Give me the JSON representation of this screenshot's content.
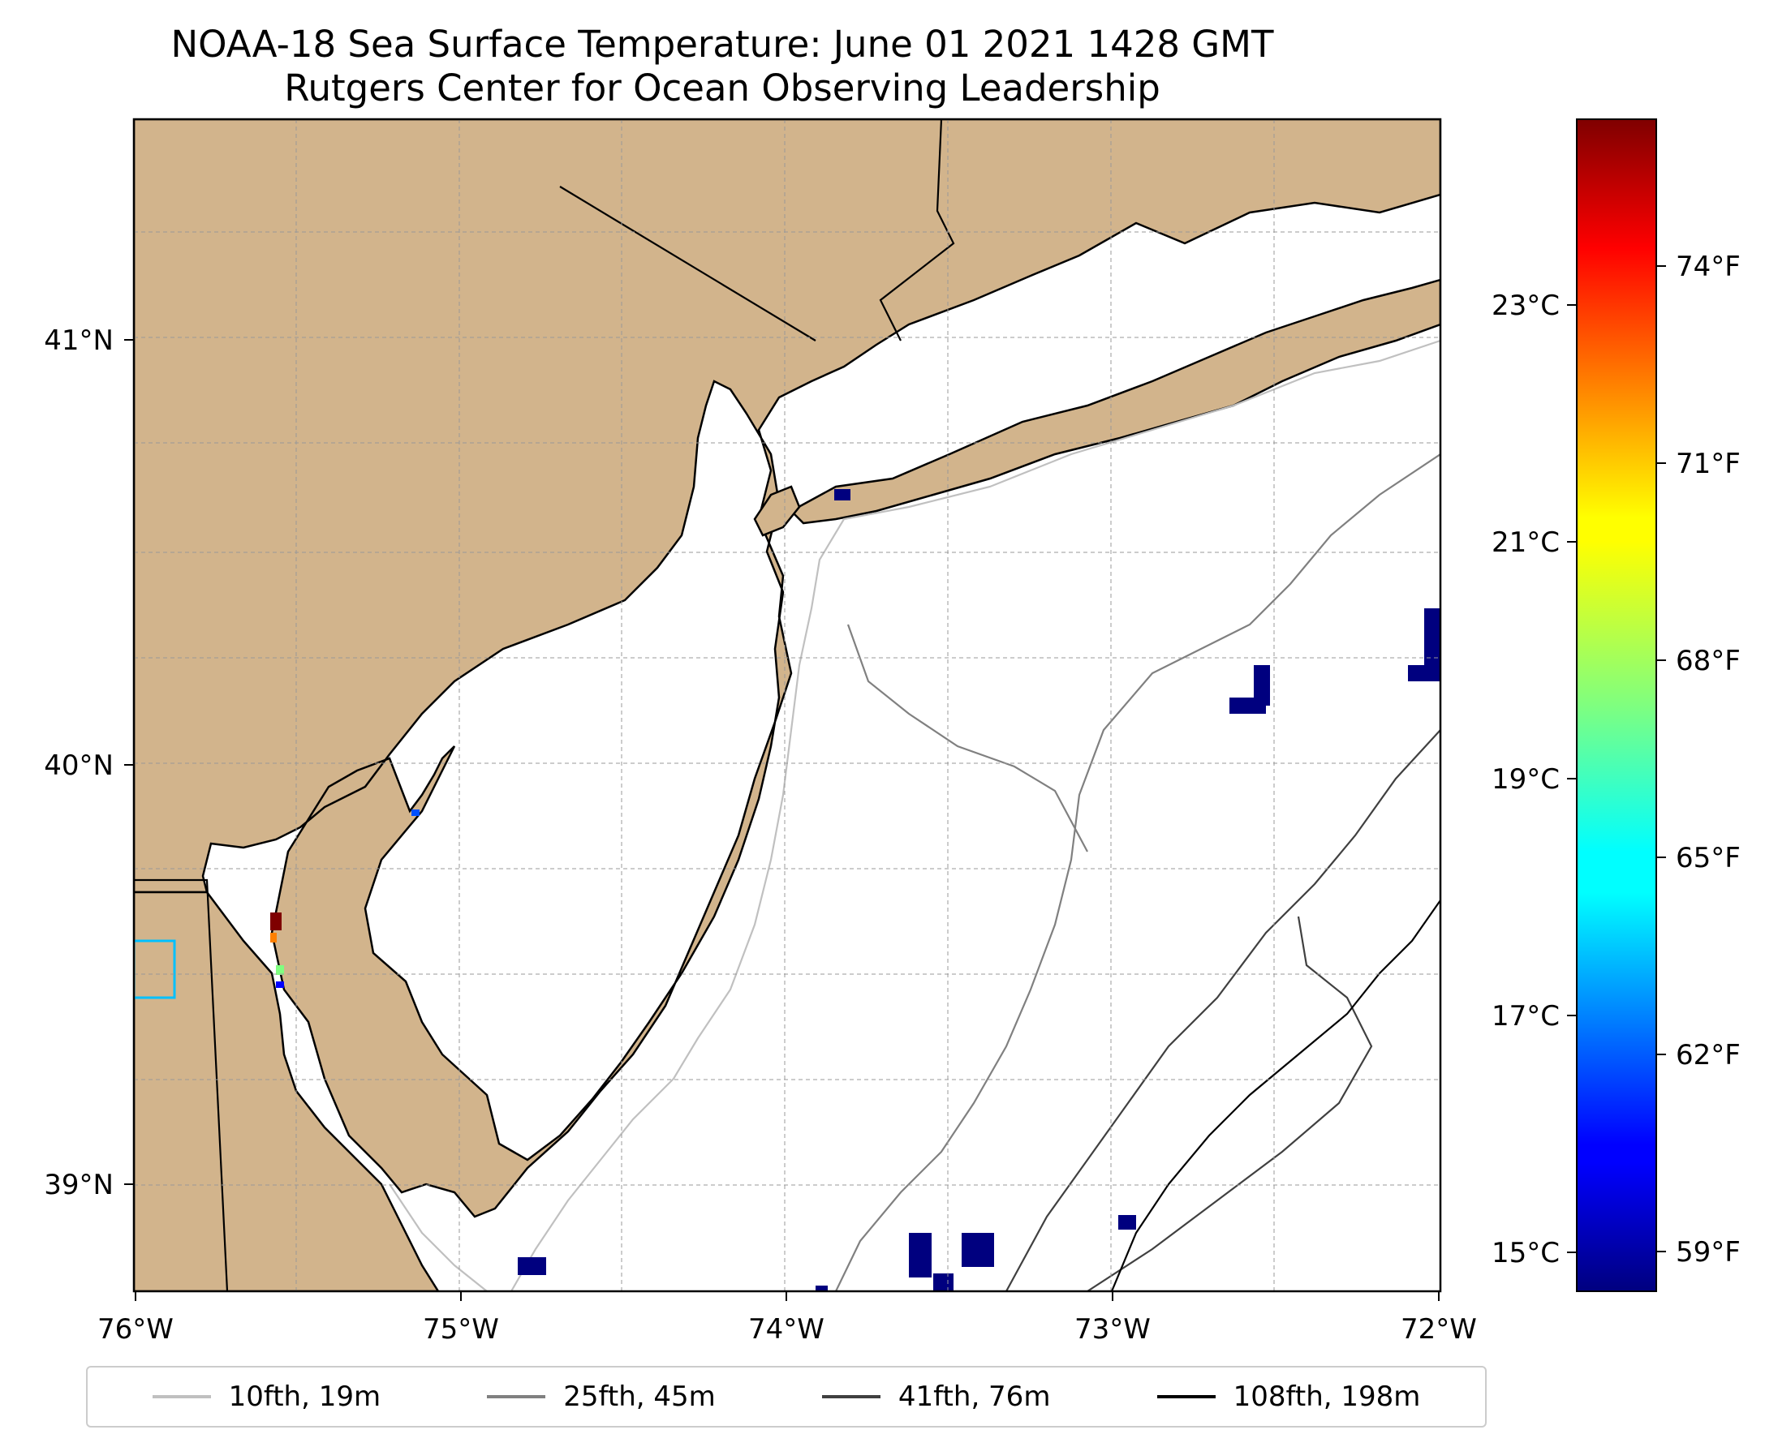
{
  "title": "NOAA-18 Sea Surface Temperature: June 01 2021 1428 GMT",
  "subtitle": "Rutgers Center for Ocean Observing Leadership",
  "map": {
    "lon_range": [
      -76,
      -72
    ],
    "lat_range": [
      38.75,
      41.55
    ],
    "lon_ticks": [
      "76°W",
      "75°W",
      "74°W",
      "73°W",
      "72°W"
    ],
    "lat_ticks": [
      "41°N",
      "40°N",
      "39°N"
    ],
    "land_color": "#d2b48c",
    "ocean_color": "#ffffff",
    "gridlines": true
  },
  "colorbar": {
    "colormap": "jet",
    "celsius_ticks": [
      "23°C",
      "21°C",
      "19°C",
      "17°C",
      "15°C"
    ],
    "fahrenheit_ticks": [
      "74°F",
      "71°F",
      "68°F",
      "65°F",
      "62°F",
      "59°F"
    ]
  },
  "legend": [
    {
      "label": "10fth, 19m",
      "color": "#c0c0c0"
    },
    {
      "label": "25fth, 45m",
      "color": "#808080"
    },
    {
      "label": "41fth, 76m",
      "color": "#404040"
    },
    {
      "label": "108fth, 198m",
      "color": "#000000"
    }
  ]
}
